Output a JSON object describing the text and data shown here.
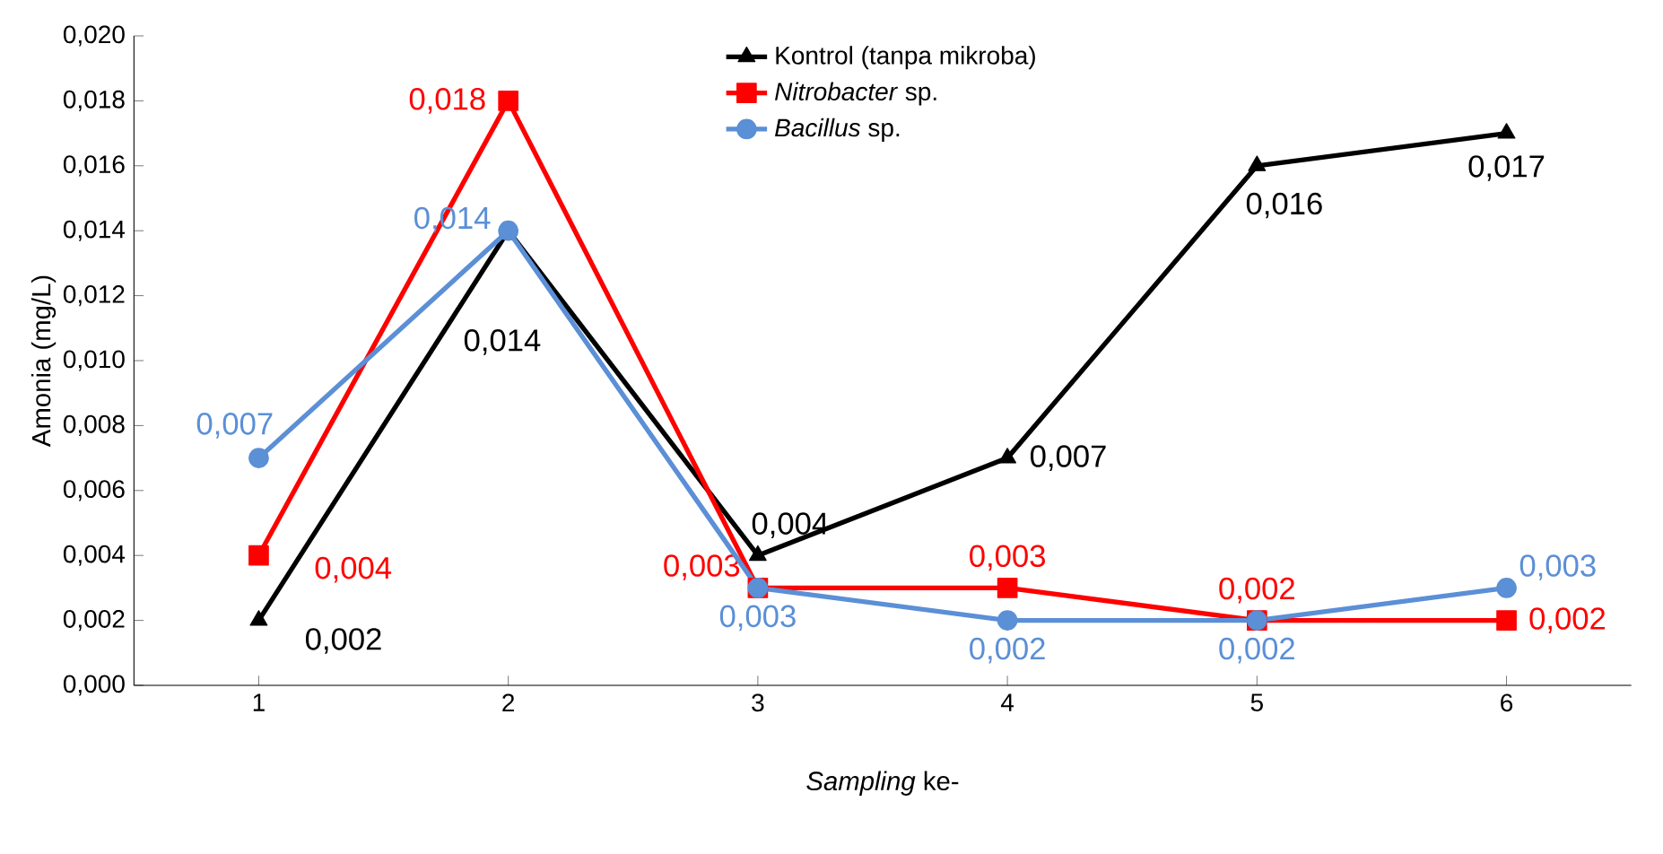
{
  "chart_data": {
    "type": "line",
    "xlabel": "*Sampling* ke-",
    "ylabel": "Amonia (mg/L)",
    "categories": [
      "1",
      "2",
      "3",
      "4",
      "5",
      "6"
    ],
    "ylim": [
      0,
      0.02
    ],
    "yticks": [
      {
        "value": 0,
        "label": "0,000"
      },
      {
        "value": 0.002,
        "label": "0,002"
      },
      {
        "value": 0.004,
        "label": "0,004"
      },
      {
        "value": 0.006,
        "label": "0,006"
      },
      {
        "value": 0.008,
        "label": "0,008"
      },
      {
        "value": 0.01,
        "label": "0,010"
      },
      {
        "value": 0.012,
        "label": "0,012"
      },
      {
        "value": 0.014,
        "label": "0,014"
      },
      {
        "value": 0.016,
        "label": "0,016"
      },
      {
        "value": 0.018,
        "label": "0,018"
      },
      {
        "value": 0.02,
        "label": "0,020"
      }
    ],
    "grid": false,
    "legend": "top",
    "line_style": "solid",
    "series": [
      {
        "name": "Kontrol (tanpa mikroba)",
        "color": "#000000",
        "marker": "triangle",
        "values": [
          0.002,
          0.014,
          0.004,
          0.007,
          0.016,
          0.017
        ],
        "value_labels": [
          "0,002",
          "0,014",
          "0,004",
          "0,007",
          "0,016",
          "0,017"
        ]
      },
      {
        "name": "*Nitrobacter* sp.",
        "color": "#ff0000",
        "marker": "square",
        "values": [
          0.004,
          0.018,
          0.003,
          0.003,
          0.002,
          0.002
        ],
        "value_labels": [
          "0,004",
          "0,018",
          "0,003",
          "0,003",
          "0,002",
          "0,002"
        ]
      },
      {
        "name": "*Bacillus* sp.",
        "color": "#5b8fd6",
        "marker": "circle",
        "values": [
          0.007,
          0.014,
          0.003,
          0.002,
          0.002,
          0.003
        ],
        "value_labels": [
          "0,007",
          "0,014",
          "0,003",
          "0,002",
          "0,002",
          "0,003"
        ]
      }
    ]
  }
}
